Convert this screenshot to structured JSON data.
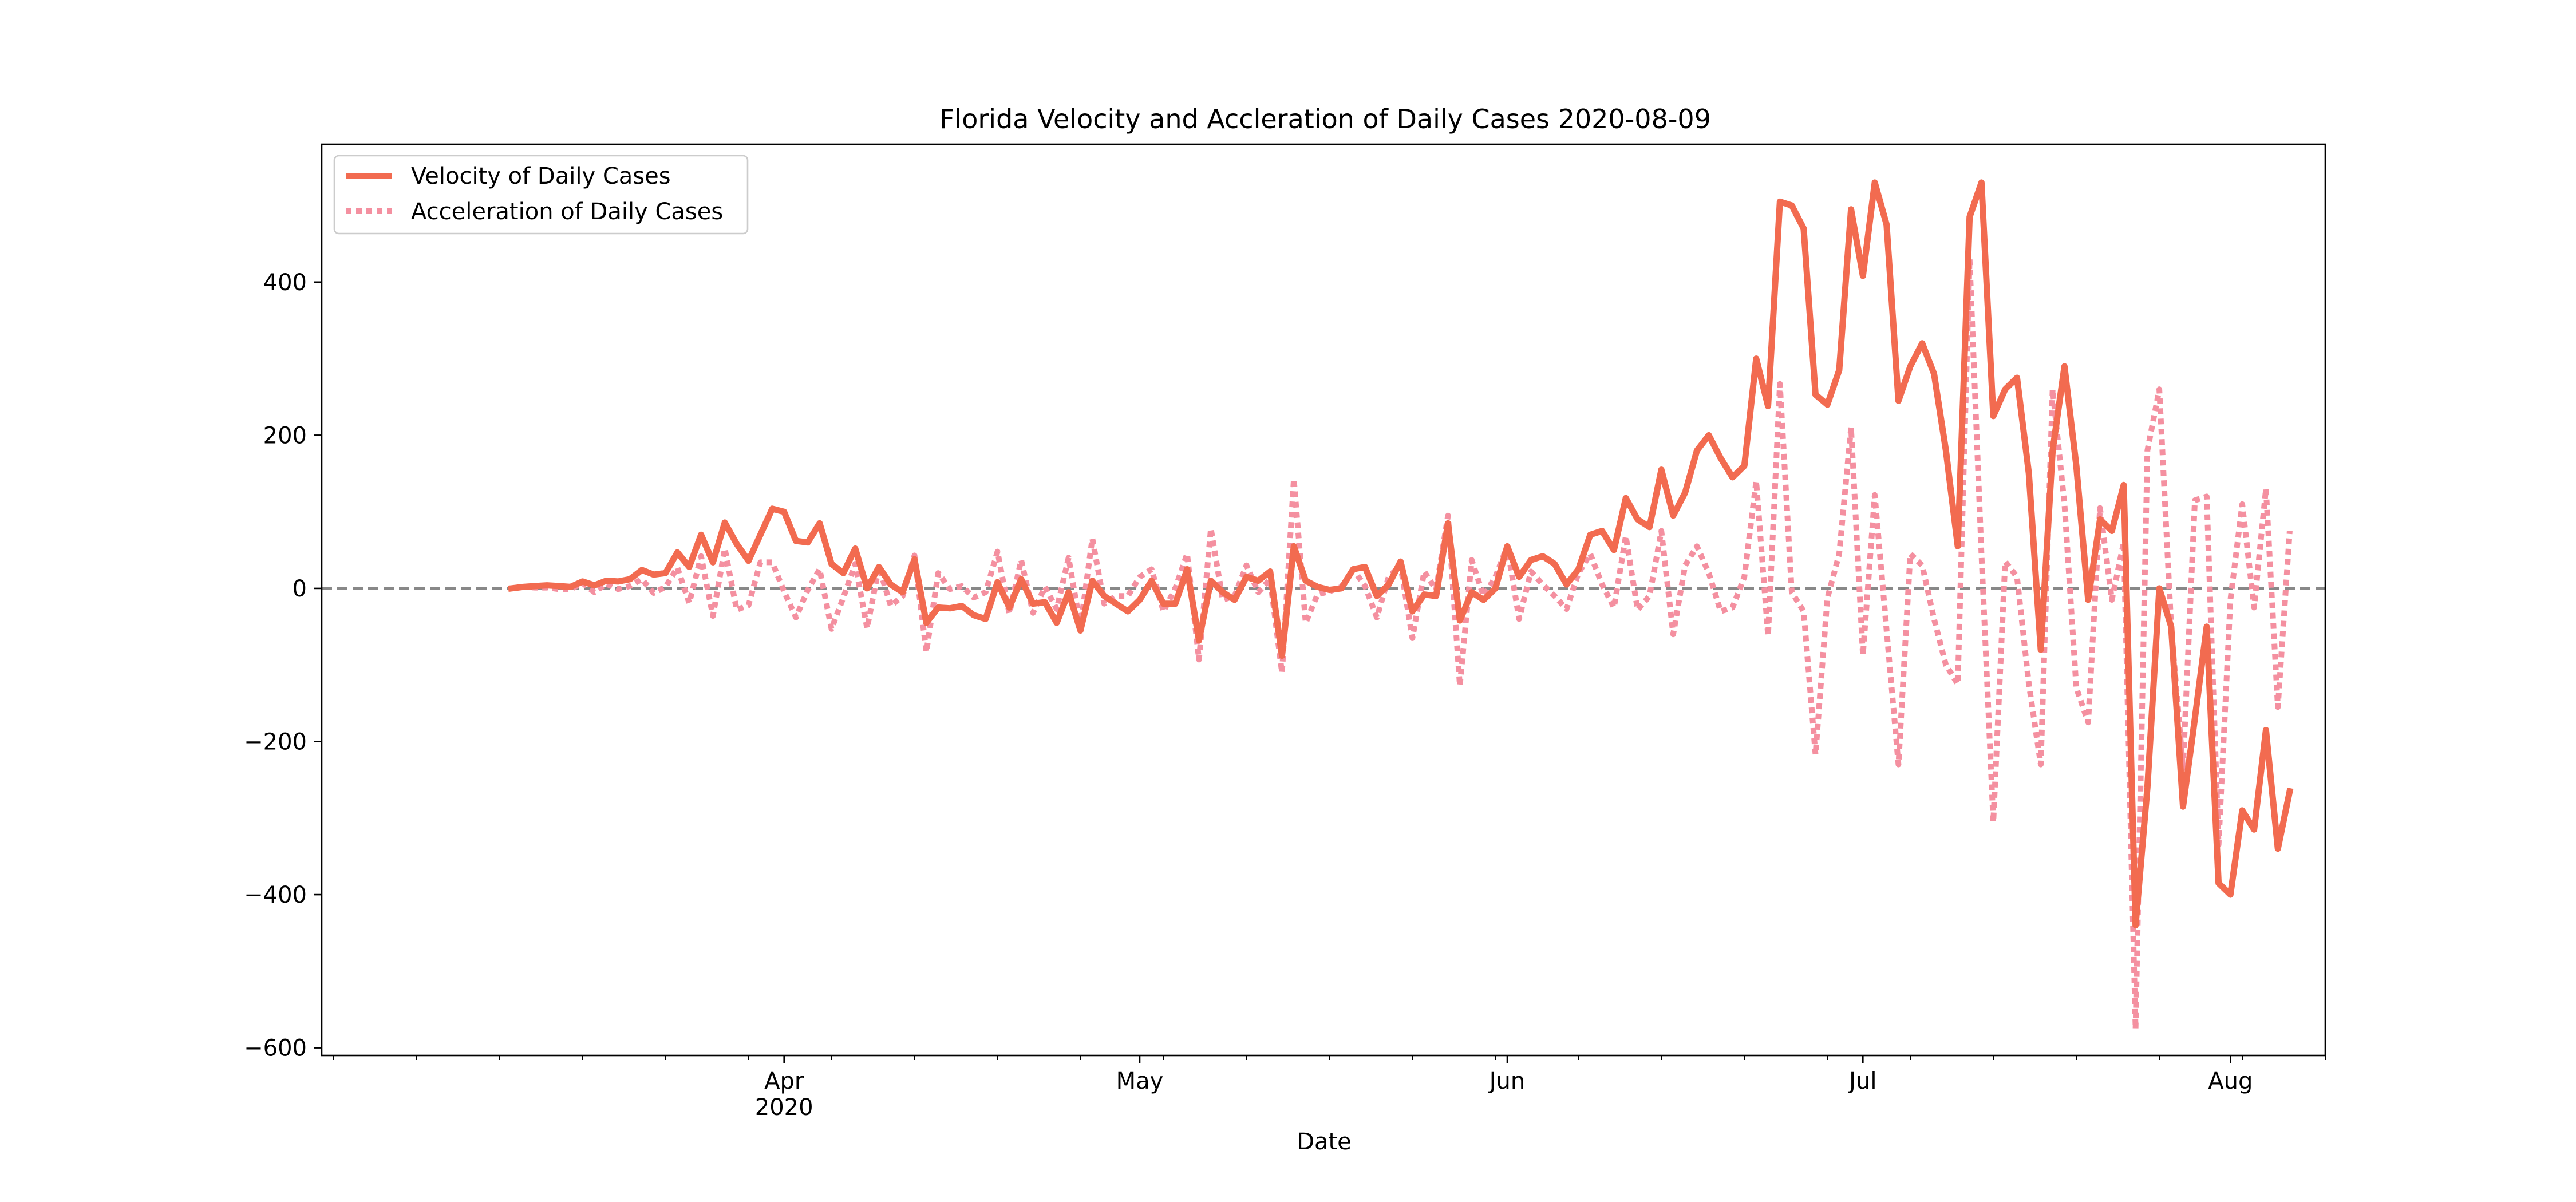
{
  "chart_data": {
    "type": "line",
    "title": "Florida Velocity and Accleration of Daily Cases 2020-08-09",
    "xlabel": "Date",
    "ylabel": "",
    "x_start": "2020-03-09",
    "x_end": "2020-08-09",
    "xlim": [
      "2020-02-22",
      "2020-08-09"
    ],
    "ylim": [
      -610,
      580
    ],
    "y_ticks": [
      -600,
      -400,
      -200,
      0,
      200,
      400
    ],
    "y_tick_labels": [
      "−600",
      "−400",
      "−200",
      "0",
      "200",
      "400"
    ],
    "x_major_ticks": [
      {
        "date": "2020-04-01",
        "label": "Apr",
        "sublabel": "2020"
      },
      {
        "date": "2020-05-01",
        "label": "May",
        "sublabel": ""
      },
      {
        "date": "2020-06-01",
        "label": "Jun",
        "sublabel": ""
      },
      {
        "date": "2020-07-01",
        "label": "Jul",
        "sublabel": ""
      },
      {
        "date": "2020-08-01",
        "label": "Aug",
        "sublabel": ""
      }
    ],
    "x_minor_ticks": [
      "2020-02-23",
      "2020-03-01",
      "2020-03-08",
      "2020-03-15",
      "2020-03-22",
      "2020-03-29",
      "2020-04-05",
      "2020-04-12",
      "2020-04-19",
      "2020-04-26",
      "2020-05-03",
      "2020-05-10",
      "2020-05-17",
      "2020-05-24",
      "2020-05-31",
      "2020-06-07",
      "2020-06-14",
      "2020-06-21",
      "2020-06-28",
      "2020-07-05",
      "2020-07-12",
      "2020-07-19",
      "2020-07-26",
      "2020-08-02",
      "2020-08-09"
    ],
    "reference_line": {
      "y": 0,
      "style": "dashed",
      "color": "#888888"
    },
    "legend_position": "upper-left",
    "series": [
      {
        "name": "Velocity of Daily Cases",
        "color": "#f26b50",
        "style": "solid",
        "values": [
          0,
          2,
          3,
          4,
          3,
          2,
          9,
          4,
          10,
          9,
          12,
          24,
          18,
          20,
          47,
          28,
          70,
          34,
          86,
          58,
          36,
          70,
          104,
          100,
          62,
          60,
          85,
          32,
          20,
          52,
          0,
          28,
          5,
          -5,
          38,
          -45,
          -25,
          -26,
          -23,
          -35,
          -40,
          8,
          -25,
          12,
          -20,
          -18,
          -45,
          -5,
          -55,
          10,
          -10,
          -20,
          -30,
          -15,
          10,
          -20,
          -20,
          25,
          -68,
          10,
          -5,
          -15,
          15,
          10,
          22,
          -88,
          55,
          10,
          2,
          -2,
          0,
          25,
          28,
          -10,
          5,
          35,
          -30,
          -8,
          -10,
          85,
          -42,
          -5,
          -15,
          0,
          55,
          15,
          37,
          42,
          32,
          5,
          25,
          70,
          75,
          50,
          118,
          90,
          80,
          155,
          95,
          125,
          180,
          200,
          170,
          145,
          160,
          300,
          238,
          505,
          500,
          470,
          253,
          240,
          285,
          495,
          408,
          530,
          475,
          245,
          290,
          320,
          280,
          180,
          55,
          485,
          530,
          225,
          260,
          275,
          150,
          -80,
          180,
          290,
          160,
          -15,
          90,
          75,
          135,
          -440,
          -260,
          0,
          -50,
          -285,
          -170,
          -50,
          -385,
          -400,
          -290,
          -315,
          -185,
          -340,
          -265
        ]
      },
      {
        "name": "Acceleration of Daily Cases",
        "color": "#f490a0",
        "style": "dotted",
        "values": [
          0,
          2,
          1,
          1,
          -1,
          -1,
          7,
          -5,
          6,
          -1,
          3,
          12,
          -6,
          2,
          27,
          -19,
          42,
          -36,
          52,
          -28,
          -22,
          34,
          34,
          -4,
          -38,
          -2,
          25,
          -53,
          -12,
          32,
          -52,
          28,
          -23,
          -10,
          43,
          -83,
          20,
          -1,
          3,
          -12,
          -5,
          48,
          -33,
          37,
          -32,
          2,
          -27,
          40,
          -50,
          65,
          -20,
          -10,
          -10,
          15,
          25,
          -30,
          0,
          45,
          -93,
          78,
          -15,
          -10,
          30,
          -5,
          12,
          -110,
          143,
          -45,
          -8,
          -4,
          2,
          25,
          3,
          -38,
          15,
          30,
          -65,
          22,
          -2,
          95,
          -127,
          37,
          -10,
          15,
          55,
          -40,
          22,
          5,
          -10,
          -27,
          20,
          45,
          5,
          -25,
          68,
          -28,
          -10,
          75,
          -60,
          30,
          55,
          20,
          -30,
          -25,
          15,
          140,
          -62,
          267,
          -5,
          -30,
          -217,
          -13,
          45,
          210,
          -87,
          122,
          -55,
          -230,
          45,
          30,
          -40,
          -100,
          -125,
          430,
          45,
          -305,
          35,
          15,
          -125,
          -230,
          260,
          110,
          -130,
          -175,
          105,
          -15,
          60,
          -575,
          180,
          260,
          -50,
          -235,
          115,
          120,
          -335,
          -15,
          110,
          -25,
          130,
          -155,
          75
        ]
      }
    ]
  }
}
